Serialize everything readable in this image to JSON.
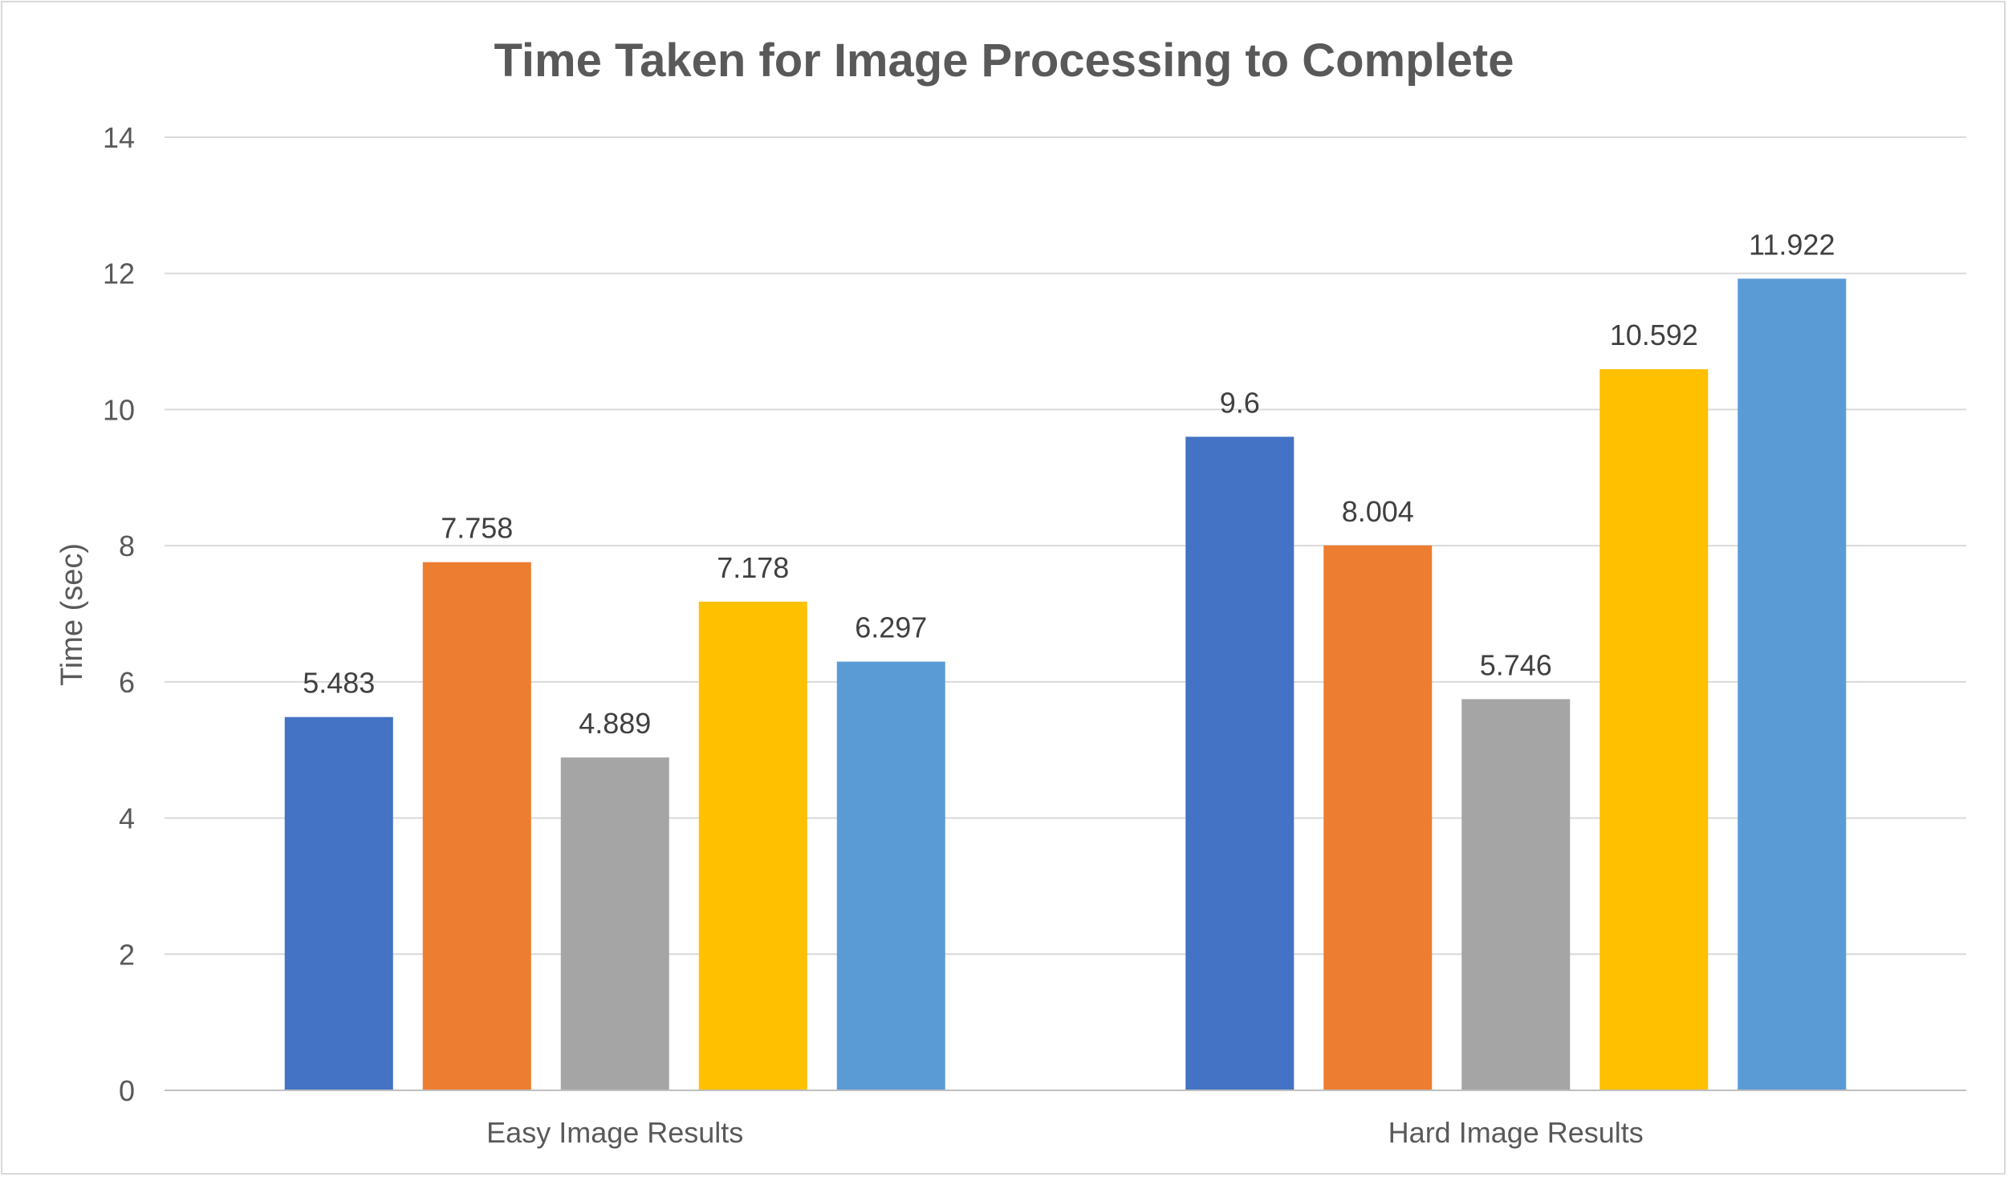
{
  "chart_data": {
    "type": "bar",
    "title": "Time Taken for Image Processing to Complete",
    "xlabel": "",
    "ylabel": "Time (sec)",
    "ylim": [
      0,
      14
    ],
    "yticks": [
      0,
      2,
      4,
      6,
      8,
      10,
      12,
      14
    ],
    "grid": true,
    "legend": "none",
    "categories": [
      "Easy Image Results",
      "Hard Image Results"
    ],
    "series": [
      {
        "color": "#4472c4",
        "values": [
          5.483,
          9.6
        ]
      },
      {
        "color": "#ed7d31",
        "values": [
          7.758,
          8.004
        ]
      },
      {
        "color": "#a5a5a5",
        "values": [
          4.889,
          5.746
        ]
      },
      {
        "color": "#ffc000",
        "values": [
          7.178,
          10.592
        ]
      },
      {
        "color": "#5b9bd5",
        "values": [
          6.297,
          11.922
        ]
      }
    ]
  }
}
